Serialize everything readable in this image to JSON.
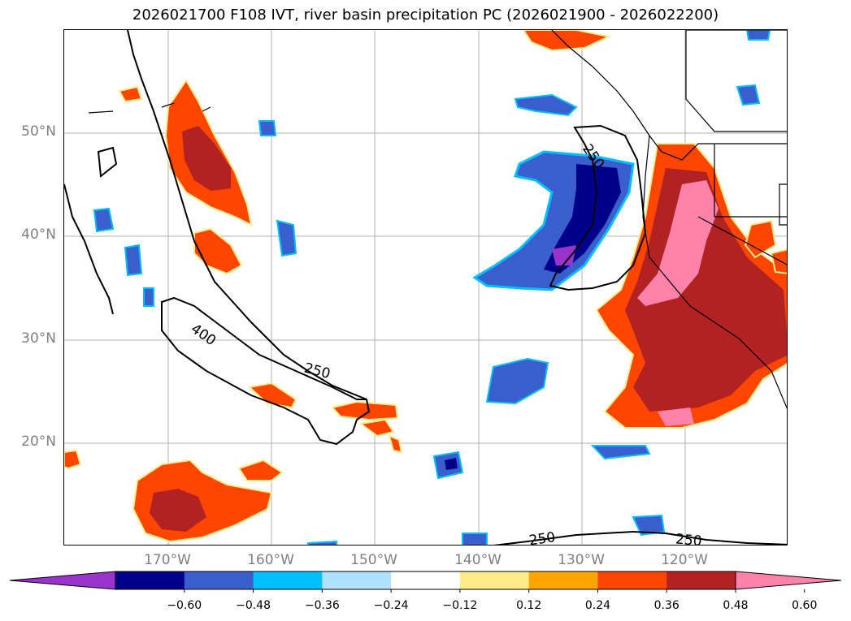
{
  "title": "2026021700 F108 IVT, river basin precipitation PC (2026021900 - 2026022200)",
  "lat_labels": [
    "50°N",
    "40°N",
    "30°N",
    "20°N"
  ],
  "lon_labels": [
    "170°W",
    "160°W",
    "150°W",
    "140°W",
    "130°W",
    "120°W"
  ],
  "contour_labels": [
    {
      "text": "400",
      "angle": 35
    },
    {
      "text": "250",
      "angle": 15
    },
    {
      "text": "250",
      "angle": 55
    },
    {
      "text": "250",
      "angle": -8
    },
    {
      "text": "250",
      "angle": 5
    }
  ],
  "colorbar": {
    "ticks": [
      "−0.60",
      "−0.48",
      "−0.36",
      "−0.24",
      "−0.12",
      "0.12",
      "0.24",
      "0.36",
      "0.48",
      "0.60"
    ],
    "colors": [
      "#9933cc",
      "#00008b",
      "#3a5fcd",
      "#00bfff",
      "#b0e2ff",
      "#ffffff",
      "#ffeb8a",
      "#ffa500",
      "#ff4500",
      "#b22222",
      "#ff82ab"
    ]
  },
  "colors": {
    "neg_strong": "#00008b",
    "neg_mid": "#3a5fcd",
    "neg_light": "#00bfff",
    "pos_orange": "#ff4500",
    "pos_red": "#b22222",
    "pos_pink": "#ff82ab",
    "pos_yellow": "#ffeb8a",
    "neg_purple": "#9933cc"
  }
}
